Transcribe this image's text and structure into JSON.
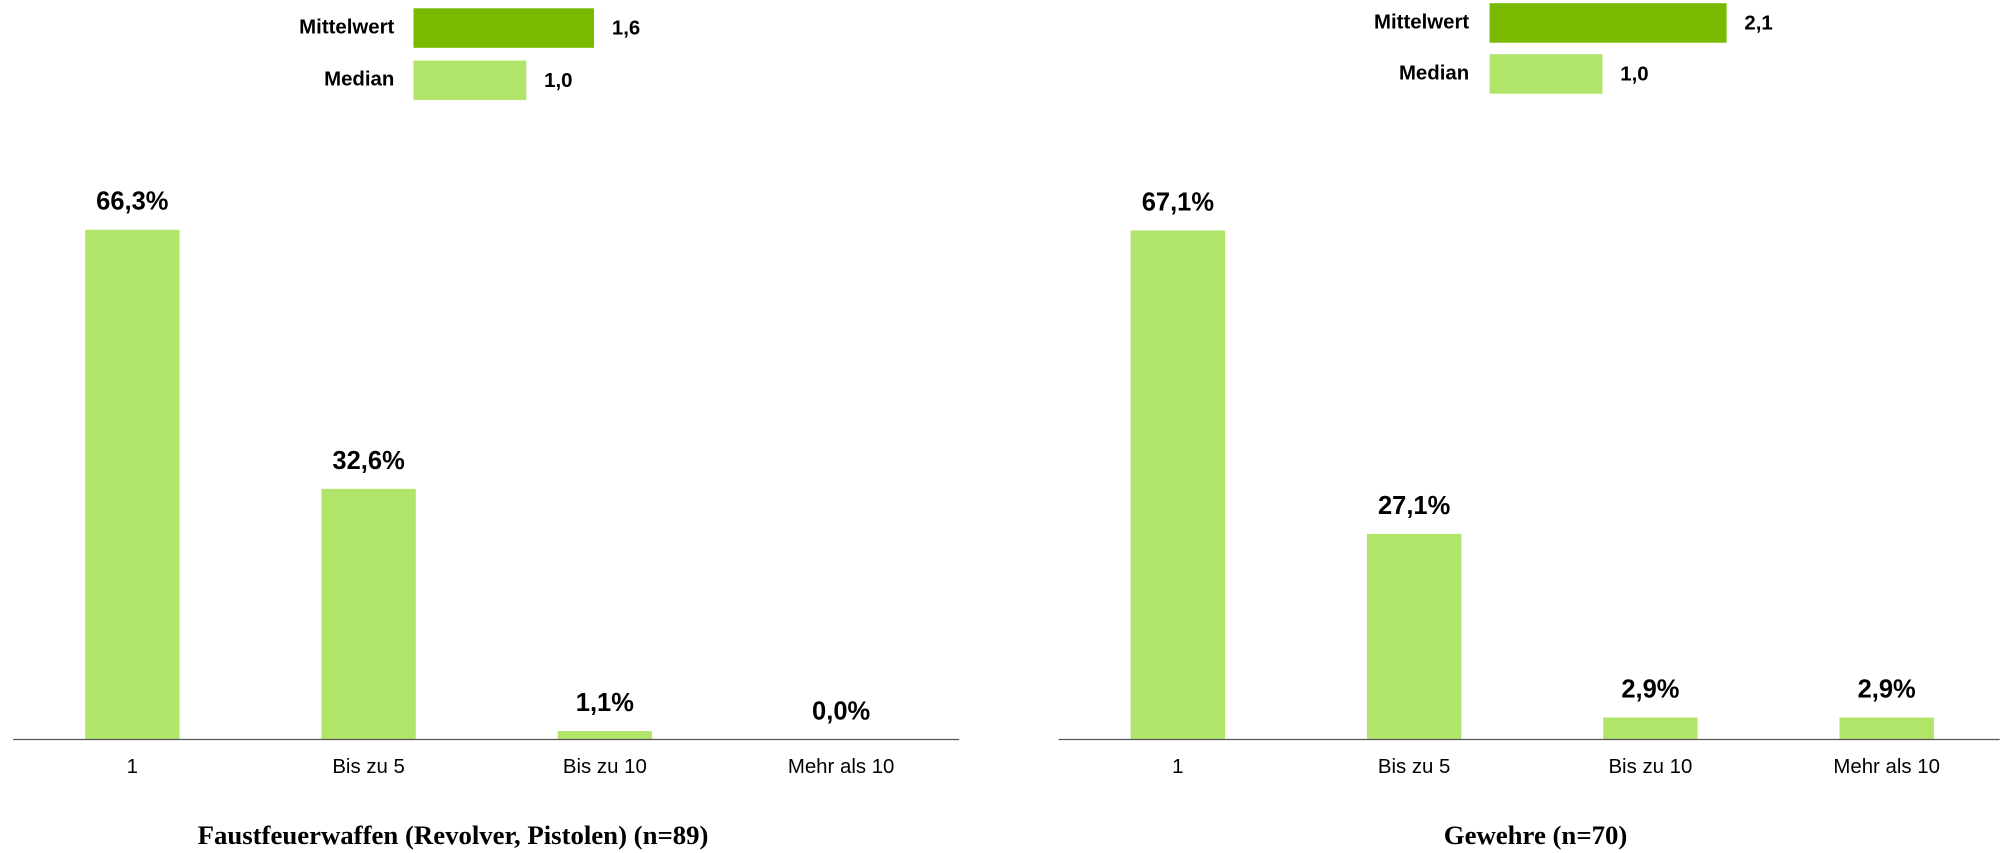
{
  "chart_data": [
    {
      "type": "barh",
      "categories": [
        "Mittelwert",
        "Median"
      ],
      "values": [
        1.6,
        1.0
      ],
      "value_labels": [
        "1,6",
        "1,0"
      ],
      "colors": [
        "#79b900",
        "#b0e56a"
      ]
    },
    {
      "type": "bar",
      "title": "Faustfeuerwaffen (Revolver, Pistolen) (n=89)",
      "categories": [
        "1",
        "Bis zu 5",
        "Bis zu 10",
        "Mehr als 10"
      ],
      "values": [
        66.3,
        32.6,
        1.1,
        0.0
      ],
      "value_labels": [
        "66,3%",
        "32,6%",
        "1,1%",
        "0,0%"
      ],
      "color": "#b0e56a"
    },
    {
      "type": "barh",
      "categories": [
        "Mittelwert",
        "Median"
      ],
      "values": [
        2.1,
        1.0
      ],
      "value_labels": [
        "2,1",
        "1,0"
      ],
      "colors": [
        "#79b900",
        "#b0e56a"
      ]
    },
    {
      "type": "bar",
      "title": "Gewehre (n=70)",
      "categories": [
        "1",
        "Bis zu 5",
        "Bis zu 10",
        "Mehr als 10"
      ],
      "values": [
        67.1,
        27.1,
        2.9,
        2.9
      ],
      "value_labels": [
        "67,1%",
        "27,1%",
        "2,9%",
        "2,9%"
      ],
      "color": "#b0e56a"
    }
  ]
}
